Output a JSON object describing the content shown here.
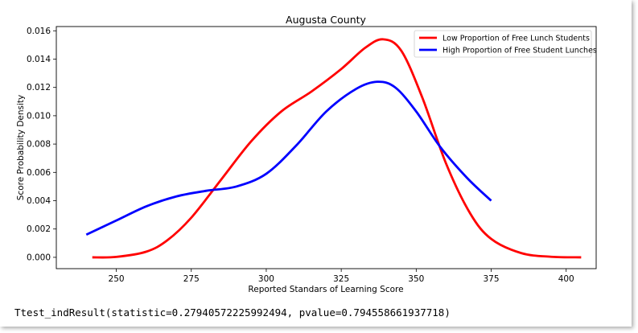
{
  "chart_data": {
    "type": "line",
    "title": "Augusta County",
    "xlabel": "Reported Standars of Learning Score",
    "ylabel": "Score Probability Density",
    "xlim": [
      230,
      410
    ],
    "ylim": [
      -0.0008,
      0.0163
    ],
    "x_ticks": [
      "250",
      "275",
      "300",
      "325",
      "350",
      "375",
      "400"
    ],
    "y_ticks": [
      "0.000",
      "0.002",
      "0.004",
      "0.006",
      "0.008",
      "0.010",
      "0.012",
      "0.014",
      "0.016"
    ],
    "grid": false,
    "legend_position": "top-right",
    "series": [
      {
        "name": "Low Proportion of Free Lunch Students",
        "color": "#ff0000",
        "points": [
          [
            242,
            0.0
          ],
          [
            250,
            3e-05
          ],
          [
            260,
            0.0004
          ],
          [
            267,
            0.0012
          ],
          [
            275,
            0.0028
          ],
          [
            285,
            0.0055
          ],
          [
            295,
            0.0082
          ],
          [
            305,
            0.0103
          ],
          [
            315,
            0.0117
          ],
          [
            325,
            0.0133
          ],
          [
            333,
            0.0148
          ],
          [
            339,
            0.0154
          ],
          [
            345,
            0.0146
          ],
          [
            352,
            0.0113
          ],
          [
            360,
            0.0066
          ],
          [
            368,
            0.0031
          ],
          [
            375,
            0.0013
          ],
          [
            385,
            0.0003
          ],
          [
            395,
            4e-05
          ],
          [
            405,
            0.0
          ]
        ]
      },
      {
        "name": "High Proportion of Free Student Lunches",
        "color": "#0000ff",
        "points": [
          [
            240,
            0.0016
          ],
          [
            250,
            0.0026
          ],
          [
            260,
            0.0036
          ],
          [
            270,
            0.0043
          ],
          [
            280,
            0.0047
          ],
          [
            290,
            0.005
          ],
          [
            300,
            0.0059
          ],
          [
            310,
            0.0079
          ],
          [
            320,
            0.0103
          ],
          [
            330,
            0.0119
          ],
          [
            337,
            0.0124
          ],
          [
            343,
            0.012
          ],
          [
            350,
            0.0103
          ],
          [
            358,
            0.0078
          ],
          [
            367,
            0.0056
          ],
          [
            375,
            0.004
          ]
        ]
      }
    ]
  },
  "output": {
    "ttest_text": "Ttest_indResult(statistic=0.27940572225992494, pvalue=0.794558661937718)"
  }
}
